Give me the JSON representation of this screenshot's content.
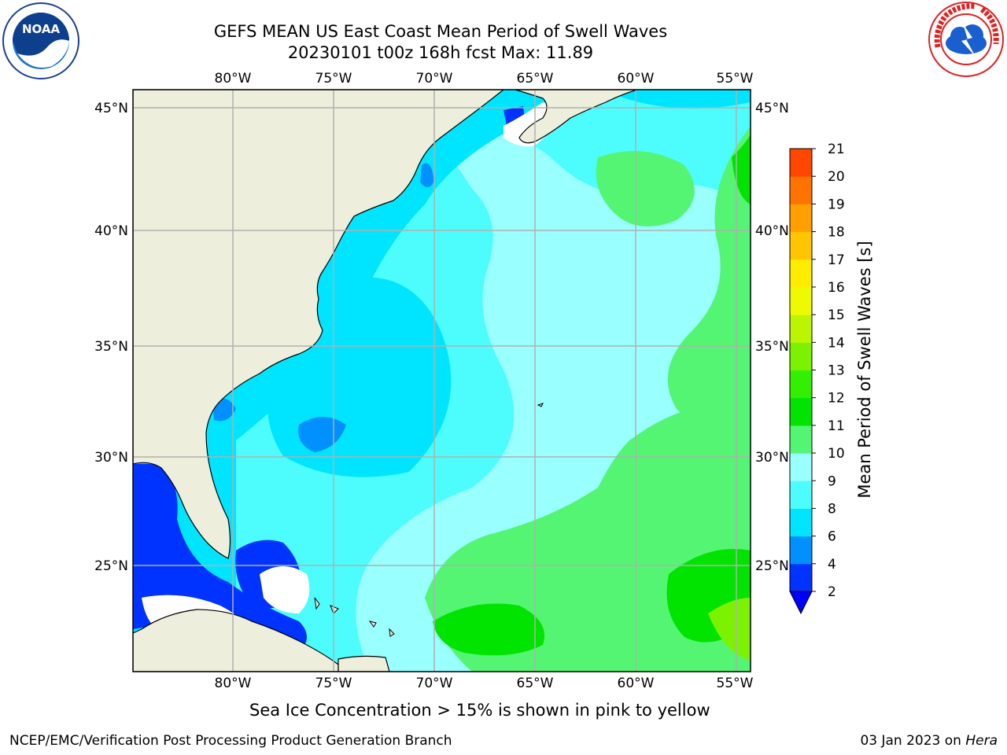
{
  "header": {
    "title_line1": "GEFS MEAN US East Coast Mean Period of Swell Waves",
    "title_line2": "20230101 t00z 168h fcst   Max: 11.89"
  },
  "map": {
    "lon_labels": [
      "80°W",
      "75°W",
      "70°W",
      "65°W",
      "60°W",
      "55°W"
    ],
    "lat_labels": [
      "45°N",
      "40°N",
      "35°N",
      "30°N",
      "25°N"
    ],
    "grid": true,
    "land_color": "#eeeedc",
    "coastline_color": "#000000",
    "grid_color": "#b0b0b0"
  },
  "colorbar": {
    "label": "Mean Period of Swell Waves [s]",
    "levels": [
      "2",
      "4",
      "6",
      "8",
      "9",
      "10",
      "11",
      "12",
      "13",
      "14",
      "15",
      "16",
      "17",
      "18",
      "19",
      "20",
      "21"
    ],
    "colors": [
      "#0033ff",
      "#0090ff",
      "#00e5ff",
      "#4dfdfd",
      "#99ffff",
      "#55f574",
      "#00e400",
      "#33f000",
      "#7df200",
      "#bbf500",
      "#eefa00",
      "#ffed00",
      "#ffc500",
      "#ffa000",
      "#ff7400",
      "#ff4700",
      "#ff0000"
    ],
    "extend_color": "#0000ff",
    "extend": "min"
  },
  "notes": {
    "sea_ice": "Sea Ice Concentration > 15% is shown in pink to yellow"
  },
  "footer": {
    "left": "NCEP/EMC/Verification Post Processing Product Generation Branch",
    "right_date": "03 Jan 2023 on ",
    "right_host": "Hera"
  },
  "logos": {
    "noaa_text": "NOAA",
    "nws_text": "NATIONAL WEATHER SERVICE"
  }
}
